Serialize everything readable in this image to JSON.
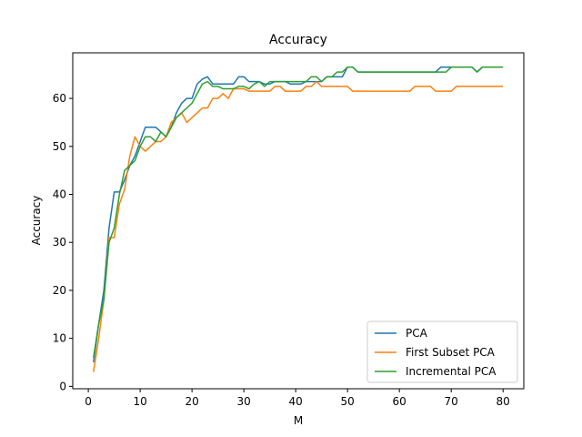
{
  "chart_data": {
    "type": "line",
    "title": "Accuracy",
    "xlabel": "M",
    "ylabel": "Accuracy",
    "xlim": [
      -3,
      84
    ],
    "ylim": [
      -0.5,
      69.5
    ],
    "xticks": [
      0,
      10,
      20,
      30,
      40,
      50,
      60,
      70,
      80
    ],
    "yticks": [
      0,
      10,
      20,
      30,
      40,
      50,
      60
    ],
    "grid": false,
    "legend": "lower-right",
    "x": [
      1,
      2,
      3,
      4,
      5,
      6,
      7,
      8,
      9,
      10,
      11,
      12,
      13,
      14,
      15,
      16,
      17,
      18,
      19,
      20,
      21,
      22,
      23,
      24,
      25,
      26,
      27,
      28,
      29,
      30,
      31,
      32,
      33,
      34,
      35,
      36,
      37,
      38,
      39,
      40,
      41,
      42,
      43,
      44,
      45,
      46,
      47,
      48,
      49,
      50,
      51,
      52,
      53,
      54,
      55,
      56,
      57,
      58,
      59,
      60,
      61,
      62,
      63,
      64,
      65,
      66,
      67,
      68,
      69,
      70,
      71,
      72,
      73,
      74,
      75,
      76,
      77,
      78,
      79,
      80
    ],
    "series": [
      {
        "name": "PCA",
        "color": "#1f77b4",
        "values": [
          5,
          13,
          20,
          33,
          40.5,
          40.5,
          43,
          46,
          48,
          51,
          54,
          54,
          54,
          53,
          52,
          54,
          57,
          59,
          60,
          60,
          63,
          64,
          64.5,
          63,
          63,
          63,
          63,
          63,
          64.5,
          64.5,
          63.5,
          63.5,
          63.5,
          63,
          63,
          63.5,
          63.5,
          63.5,
          63,
          63,
          63,
          63.5,
          63.5,
          63.5,
          63.5,
          64.5,
          64.5,
          64.5,
          64.5,
          66.5,
          66.5,
          65.5,
          65.5,
          65.5,
          65.5,
          65.5,
          65.5,
          65.5,
          65.5,
          65.5,
          65.5,
          65.5,
          65.5,
          65.5,
          65.5,
          65.5,
          65.5,
          66.5,
          66.5,
          66.5,
          66.5,
          66.5,
          66.5,
          66.5,
          65.5,
          66.5,
          66.5,
          66.5,
          66.5,
          66.5
        ]
      },
      {
        "name": "First Subset PCA",
        "color": "#ff7f0e",
        "values": [
          3,
          10,
          18,
          31,
          31,
          38,
          41,
          48,
          52,
          50,
          49,
          50,
          51,
          51,
          52,
          55,
          56,
          57,
          55,
          56,
          57,
          58,
          58,
          60,
          60,
          61,
          60,
          62,
          62,
          62,
          61.5,
          61.5,
          61.5,
          61.5,
          61.5,
          62.5,
          62.5,
          61.5,
          61.5,
          61.5,
          61.5,
          62.5,
          62.5,
          63.5,
          62.5,
          62.5,
          62.5,
          62.5,
          62.5,
          62.5,
          61.5,
          61.5,
          61.5,
          61.5,
          61.5,
          61.5,
          61.5,
          61.5,
          61.5,
          61.5,
          61.5,
          61.5,
          62.5,
          62.5,
          62.5,
          62.5,
          61.5,
          61.5,
          61.5,
          61.5,
          62.5,
          62.5,
          62.5,
          62.5,
          62.5,
          62.5,
          62.5,
          62.5,
          62.5,
          62.5
        ]
      },
      {
        "name": "Incremental PCA",
        "color": "#2ca02c",
        "values": [
          6,
          13,
          18,
          30,
          33,
          40,
          45,
          46,
          47,
          50,
          52,
          52,
          51,
          53,
          52,
          54,
          56,
          57,
          58,
          59,
          61,
          63,
          63.5,
          62.5,
          62.5,
          62,
          62,
          62,
          62.5,
          62.5,
          62,
          63,
          63.5,
          62.5,
          63.5,
          63.5,
          63.5,
          63.5,
          63.5,
          63.5,
          63.5,
          63.5,
          64.5,
          64.5,
          63.5,
          64.5,
          64.5,
          65.5,
          65.5,
          66.5,
          66.5,
          65.5,
          65.5,
          65.5,
          65.5,
          65.5,
          65.5,
          65.5,
          65.5,
          65.5,
          65.5,
          65.5,
          65.5,
          65.5,
          65.5,
          65.5,
          65.5,
          65.5,
          65.5,
          66.5,
          66.5,
          66.5,
          66.5,
          66.5,
          65.5,
          66.5,
          66.5,
          66.5,
          66.5,
          66.5
        ]
      }
    ]
  }
}
